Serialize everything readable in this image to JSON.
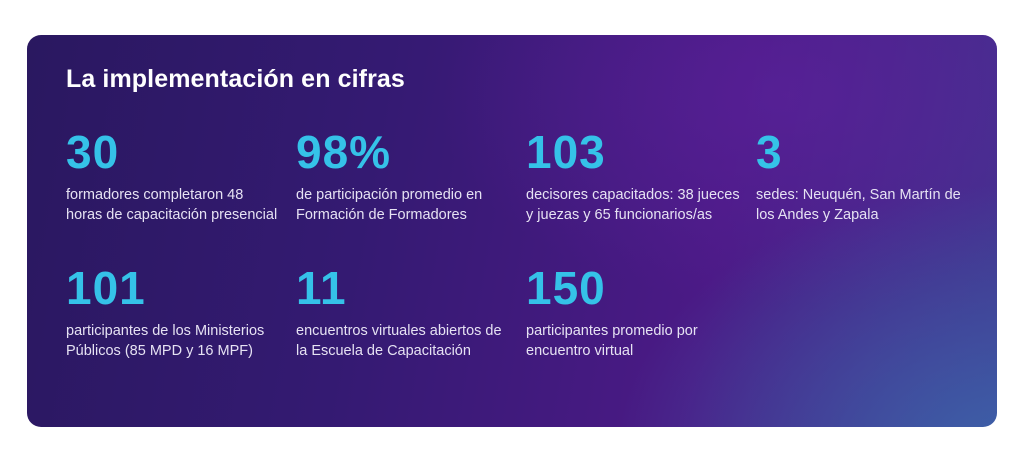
{
  "title": "La implementación en cifras",
  "colors": {
    "number": "#35c2e8",
    "text": "#e6e2f3",
    "background_start": "#2a1860",
    "background_end": "#3c64aa"
  },
  "stats": [
    {
      "number": "30",
      "description": "formadores completaron 48 horas de capacitación presencial"
    },
    {
      "number": "98%",
      "description": "de participación promedio en Formación de Formadores"
    },
    {
      "number": "103",
      "description": "decisores capacitados: 38 jueces y juezas y 65 funcionarios/as"
    },
    {
      "number": "3",
      "description": "sedes: Neuquén, San Martín de los Andes y Zapala"
    },
    {
      "number": "101",
      "description": "participantes de los Ministerios Públicos (85 MPD y 16 MPF)"
    },
    {
      "number": "11",
      "description": "encuentros virtuales abiertos de la Escuela de Capacitación"
    },
    {
      "number": "150",
      "description": "participantes promedio por encuentro virtual"
    }
  ]
}
